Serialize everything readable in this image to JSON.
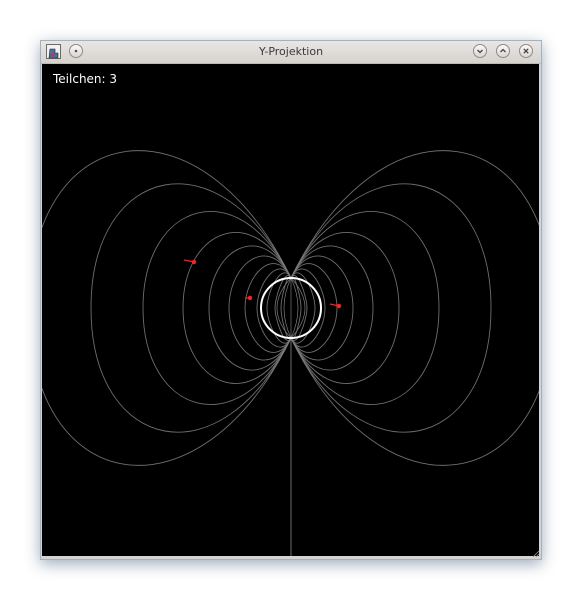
{
  "window": {
    "title": "Y-Projektion"
  },
  "display": {
    "counter_label": "Teilchen:",
    "counter_value": "3",
    "particle_count": 3
  },
  "colors": {
    "background": "#000000",
    "field_lines": "#7a7a7a",
    "sphere": "#ffffff",
    "particles": "#ff2020"
  },
  "icons": {
    "app": "app-icon",
    "menu": "circle-menu-icon",
    "minimize": "chevron-down-icon",
    "maximize": "chevron-up-icon",
    "close": "close-icon"
  }
}
